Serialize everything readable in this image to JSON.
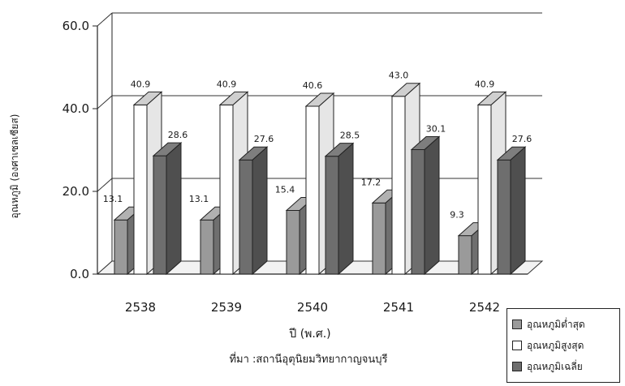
{
  "chart_data": {
    "type": "bar",
    "title": "",
    "xlabel": "ปี (พ.ศ.)",
    "ylabel": "อุณหภูมิ (องศาเซลเซียส)",
    "source": "ที่มา :สถานีอุตุนิยมวิทยากาญจนบุรี",
    "categories": [
      "2538",
      "2539",
      "2540",
      "2541",
      "2542"
    ],
    "ylim": [
      0,
      60
    ],
    "yticks": [
      "0.0",
      "20.0",
      "40.0",
      "60.0"
    ],
    "ytick_values": [
      0,
      20,
      40,
      60
    ],
    "grid": true,
    "legend_position": "bottom-right",
    "series": [
      {
        "name": "อุณหภูมิต่ำสุด",
        "values": [
          13.1,
          13.1,
          15.4,
          17.2,
          9.3
        ],
        "labels": [
          "13.1",
          "13.1",
          "15.4",
          "17.2",
          "9.3"
        ],
        "color": "#9a9a9a"
      },
      {
        "name": "อุณหภูมิสูงสุด",
        "values": [
          40.9,
          40.9,
          40.6,
          43.0,
          40.9
        ],
        "labels": [
          "40.9",
          "40.9",
          "40.6",
          "43.0",
          "40.9"
        ],
        "color": "#ffffff"
      },
      {
        "name": "อุณหภูมิเฉลี่ย",
        "values": [
          28.6,
          27.6,
          28.5,
          30.1,
          27.6
        ],
        "labels": [
          "28.6",
          "27.6",
          "28.5",
          "30.1",
          "27.6"
        ],
        "color": "#6e6e6e"
      }
    ]
  }
}
